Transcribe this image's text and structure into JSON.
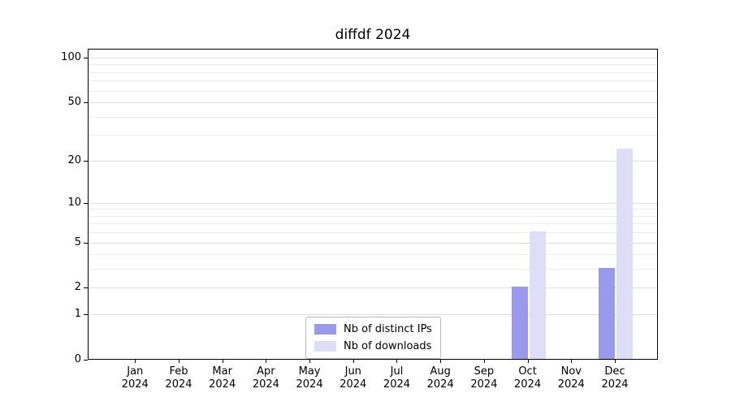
{
  "chart_data": {
    "type": "bar",
    "title": "diffdf 2024",
    "xlabel": "",
    "ylabel": "",
    "categories": [
      "Jan",
      "Feb",
      "Mar",
      "Apr",
      "May",
      "Jun",
      "Jul",
      "Aug",
      "Sep",
      "Oct",
      "Nov",
      "Dec"
    ],
    "year_label": "2024",
    "series": [
      {
        "name": "Nb of distinct IPs",
        "color": "#9999ee",
        "values": [
          0,
          0,
          0,
          0,
          0,
          0,
          0,
          0,
          0,
          2,
          0,
          3
        ]
      },
      {
        "name": "Nb of downloads",
        "color": "#dedef8",
        "values": [
          0,
          0,
          0,
          0,
          0,
          0,
          0,
          0,
          0,
          6,
          0,
          24
        ]
      }
    ],
    "y_ticks": [
      0,
      1,
      2,
      5,
      10,
      20,
      50,
      100
    ],
    "y_gridline_values": [
      1,
      2,
      3,
      4,
      5,
      6,
      7,
      8,
      9,
      10,
      20,
      30,
      40,
      50,
      60,
      70,
      80,
      90,
      100
    ],
    "y_scale": "log10(value+1)",
    "ylim": [
      0,
      115
    ],
    "grid": "horizontal",
    "legend_position": "lower-center-inside"
  }
}
